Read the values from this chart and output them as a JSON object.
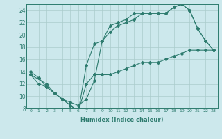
{
  "xlabel": "Humidex (Indice chaleur)",
  "xlim": [
    -0.5,
    23.5
  ],
  "ylim": [
    8,
    25
  ],
  "xticks": [
    0,
    1,
    2,
    3,
    4,
    5,
    6,
    7,
    8,
    9,
    10,
    11,
    12,
    13,
    14,
    15,
    16,
    17,
    18,
    19,
    20,
    21,
    22,
    23
  ],
  "yticks": [
    8,
    10,
    12,
    14,
    16,
    18,
    20,
    22,
    24
  ],
  "bg_color": "#cce8ec",
  "grid_color": "#aacccc",
  "line_color": "#2d7b6e",
  "series1_x": [
    0,
    1,
    2,
    3,
    4,
    5,
    6,
    7,
    8,
    9,
    10,
    11,
    12,
    13,
    14,
    15,
    16,
    17,
    18,
    19,
    20,
    21,
    22,
    23
  ],
  "series1_y": [
    14,
    13,
    11.5,
    10.5,
    9.5,
    9.0,
    8.5,
    9.5,
    12.5,
    19.0,
    21.5,
    22.0,
    22.5,
    23.5,
    23.5,
    23.5,
    23.5,
    23.5,
    24.5,
    25.0,
    24.0,
    21.0,
    19.0,
    17.5
  ],
  "series2_x": [
    0,
    1,
    2,
    3,
    4,
    5,
    6,
    7,
    8,
    9,
    10,
    11,
    12,
    13,
    14,
    15,
    16,
    17,
    18,
    19,
    20,
    21,
    22,
    23
  ],
  "series2_y": [
    13.5,
    12.0,
    11.5,
    10.5,
    9.5,
    8.5,
    7.5,
    15.0,
    18.5,
    19.0,
    20.5,
    21.5,
    22.0,
    22.5,
    23.5,
    23.5,
    23.5,
    23.5,
    24.5,
    25.0,
    24.0,
    21.0,
    19.0,
    17.5
  ],
  "series3_x": [
    0,
    2,
    3,
    4,
    5,
    6,
    7,
    8,
    9,
    10,
    11,
    12,
    13,
    14,
    15,
    16,
    17,
    18,
    19,
    20,
    21,
    22,
    23
  ],
  "series3_y": [
    13.5,
    12.0,
    10.5,
    9.5,
    8.5,
    7.5,
    12.0,
    13.5,
    13.5,
    13.5,
    14.0,
    14.5,
    15.0,
    15.5,
    15.5,
    15.5,
    16.0,
    16.5,
    17.0,
    17.5,
    17.5,
    17.5,
    17.5
  ]
}
